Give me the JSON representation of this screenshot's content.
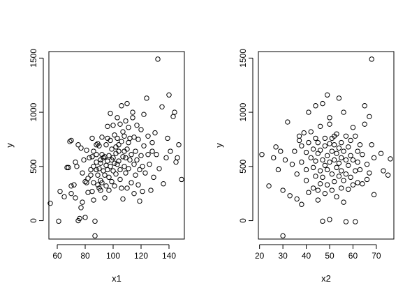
{
  "chart_data": [
    {
      "type": "scatter",
      "xlabel": "x1",
      "ylabel": "y",
      "xlim": [
        54,
        151
      ],
      "ylim": [
        -170,
        1560
      ],
      "xticks": [
        60,
        80,
        100,
        120,
        140
      ],
      "yticks": [
        0,
        500,
        1000,
        1500
      ],
      "grid": false,
      "legend": "none",
      "points": [
        [
          55,
          160
        ],
        [
          61,
          -5
        ],
        [
          62,
          270
        ],
        [
          65,
          220
        ],
        [
          67,
          490
        ],
        [
          68,
          490
        ],
        [
          69,
          730
        ],
        [
          70,
          740
        ],
        [
          70,
          250
        ],
        [
          70,
          320
        ],
        [
          72,
          330
        ],
        [
          73,
          210
        ],
        [
          73,
          540
        ],
        [
          74,
          500
        ],
        [
          75,
          700
        ],
        [
          75,
          0
        ],
        [
          76,
          20
        ],
        [
          77,
          670
        ],
        [
          77,
          120
        ],
        [
          78,
          170
        ],
        [
          78,
          440
        ],
        [
          79,
          560
        ],
        [
          80,
          360
        ],
        [
          80,
          30
        ],
        [
          81,
          650
        ],
        [
          81,
          350
        ],
        [
          82,
          390
        ],
        [
          82,
          260
        ],
        [
          83,
          580
        ],
        [
          84,
          420
        ],
        [
          84,
          470
        ],
        [
          85,
          760
        ],
        [
          85,
          270
        ],
        [
          85,
          590
        ],
        [
          86,
          500
        ],
        [
          86,
          640
        ],
        [
          86,
          350
        ],
        [
          86,
          190
        ],
        [
          87,
          -140
        ],
        [
          87,
          -5
        ],
        [
          88,
          700
        ],
        [
          88,
          540
        ],
        [
          88,
          610
        ],
        [
          88,
          470
        ],
        [
          89,
          710
        ],
        [
          89,
          420
        ],
        [
          89,
          330
        ],
        [
          90,
          300
        ],
        [
          90,
          690
        ],
        [
          90,
          480
        ],
        [
          91,
          560
        ],
        [
          91,
          370
        ],
        [
          91,
          530
        ],
        [
          91,
          280
        ],
        [
          92,
          770
        ],
        [
          92,
          610
        ],
        [
          92,
          350
        ],
        [
          93,
          580
        ],
        [
          93,
          460
        ],
        [
          94,
          590
        ],
        [
          94,
          420
        ],
        [
          94,
          210
        ],
        [
          95,
          700
        ],
        [
          95,
          510
        ],
        [
          95,
          320
        ],
        [
          96,
          760
        ],
        [
          96,
          550
        ],
        [
          96,
          470
        ],
        [
          96,
          870
        ],
        [
          97,
          600
        ],
        [
          97,
          400
        ],
        [
          97,
          280
        ],
        [
          98,
          990
        ],
        [
          98,
          740
        ],
        [
          98,
          500
        ],
        [
          99,
          660
        ],
        [
          99,
          360
        ],
        [
          99,
          560
        ],
        [
          100,
          460
        ],
        [
          100,
          880
        ],
        [
          100,
          580
        ],
        [
          101,
          530
        ],
        [
          101,
          790
        ],
        [
          101,
          320
        ],
        [
          102,
          620
        ],
        [
          102,
          430
        ],
        [
          102,
          680
        ],
        [
          103,
          760
        ],
        [
          103,
          950
        ],
        [
          103,
          520
        ],
        [
          104,
          700
        ],
        [
          104,
          550
        ],
        [
          104,
          640
        ],
        [
          105,
          380
        ],
        [
          105,
          890
        ],
        [
          105,
          470
        ],
        [
          106,
          1060
        ],
        [
          106,
          730
        ],
        [
          106,
          300
        ],
        [
          107,
          590
        ],
        [
          107,
          820
        ],
        [
          107,
          200
        ],
        [
          108,
          780
        ],
        [
          108,
          500
        ],
        [
          108,
          640
        ],
        [
          109,
          440
        ],
        [
          109,
          920
        ],
        [
          109,
          580
        ],
        [
          110,
          660
        ],
        [
          110,
          1080
        ],
        [
          110,
          300
        ],
        [
          111,
          720
        ],
        [
          111,
          480
        ],
        [
          111,
          860
        ],
        [
          112,
          560
        ],
        [
          112,
          760
        ],
        [
          113,
          610
        ],
        [
          113,
          350
        ],
        [
          114,
          950
        ],
        [
          114,
          1000
        ],
        [
          115,
          520
        ],
        [
          115,
          770
        ],
        [
          115,
          250
        ],
        [
          116,
          640
        ],
        [
          116,
          420
        ],
        [
          117,
          880
        ],
        [
          117,
          560
        ],
        [
          118,
          750
        ],
        [
          118,
          330
        ],
        [
          119,
          180
        ],
        [
          119,
          470
        ],
        [
          120,
          600
        ],
        [
          120,
          840
        ],
        [
          121,
          500
        ],
        [
          121,
          270
        ],
        [
          122,
          690
        ],
        [
          122,
          980
        ],
        [
          123,
          440
        ],
        [
          124,
          1130
        ],
        [
          125,
          610
        ],
        [
          125,
          780
        ],
        [
          126,
          520
        ],
        [
          127,
          280
        ],
        [
          128,
          720
        ],
        [
          128,
          640
        ],
        [
          129,
          400
        ],
        [
          130,
          810
        ],
        [
          131,
          610
        ],
        [
          132,
          1490
        ],
        [
          133,
          480
        ],
        [
          135,
          1050
        ],
        [
          136,
          340
        ],
        [
          138,
          580
        ],
        [
          139,
          760
        ],
        [
          140,
          1160
        ],
        [
          141,
          640
        ],
        [
          143,
          960
        ],
        [
          144,
          1000
        ],
        [
          145,
          540
        ],
        [
          146,
          580
        ],
        [
          147,
          700
        ],
        [
          149,
          380
        ]
      ]
    },
    {
      "type": "scatter",
      "xlabel": "x2",
      "ylabel": "y",
      "xlim": [
        19.5,
        77.5
      ],
      "ylim": [
        -170,
        1560
      ],
      "xticks": [
        20,
        30,
        40,
        50,
        60,
        70
      ],
      "yticks": [
        0,
        500,
        1000,
        1500
      ],
      "grid": false,
      "legend": "none",
      "points": [
        [
          21,
          610
        ],
        [
          24,
          320
        ],
        [
          26,
          580
        ],
        [
          27,
          680
        ],
        [
          28,
          470
        ],
        [
          29,
          640
        ],
        [
          30,
          -140
        ],
        [
          30,
          280
        ],
        [
          31,
          560
        ],
        [
          32,
          910
        ],
        [
          33,
          230
        ],
        [
          34,
          520
        ],
        [
          35,
          640
        ],
        [
          36,
          430
        ],
        [
          36,
          200
        ],
        [
          37,
          740
        ],
        [
          37,
          780
        ],
        [
          38,
          540
        ],
        [
          38,
          690
        ],
        [
          38,
          150
        ],
        [
          39,
          810
        ],
        [
          40,
          470
        ],
        [
          40,
          630
        ],
        [
          40,
          370
        ],
        [
          41,
          1000
        ],
        [
          41,
          260
        ],
        [
          41,
          720
        ],
        [
          42,
          580
        ],
        [
          42,
          820
        ],
        [
          43,
          490
        ],
        [
          43,
          660
        ],
        [
          43,
          300
        ],
        [
          44,
          760
        ],
        [
          44,
          550
        ],
        [
          44,
          410
        ],
        [
          44,
          1060
        ],
        [
          45,
          620
        ],
        [
          45,
          720
        ],
        [
          45,
          280
        ],
        [
          45,
          190
        ],
        [
          46,
          460
        ],
        [
          46,
          650
        ],
        [
          46,
          870
        ],
        [
          46,
          340
        ],
        [
          47,
          560
        ],
        [
          47,
          1080
        ],
        [
          47,
          400
        ],
        [
          47,
          -5
        ],
        [
          48,
          690
        ],
        [
          48,
          510
        ],
        [
          48,
          760
        ],
        [
          48,
          250
        ],
        [
          49,
          1160
        ],
        [
          49,
          470
        ],
        [
          49,
          600
        ],
        [
          49,
          330
        ],
        [
          50,
          890
        ],
        [
          50,
          710
        ],
        [
          50,
          540
        ],
        [
          50,
          950
        ],
        [
          50,
          10
        ],
        [
          51,
          640
        ],
        [
          51,
          430
        ],
        [
          51,
          760
        ],
        [
          51,
          280
        ],
        [
          52,
          780
        ],
        [
          52,
          560
        ],
        [
          52,
          360
        ],
        [
          52,
          700
        ],
        [
          53,
          800
        ],
        [
          53,
          490
        ],
        [
          53,
          620
        ],
        [
          53,
          220
        ],
        [
          54,
          1130
        ],
        [
          54,
          670
        ],
        [
          54,
          410
        ],
        [
          54,
          530
        ],
        [
          55,
          720
        ],
        [
          55,
          580
        ],
        [
          55,
          300
        ],
        [
          55,
          460
        ],
        [
          56,
          1000
        ],
        [
          56,
          640
        ],
        [
          56,
          370
        ],
        [
          56,
          170
        ],
        [
          57,
          560
        ],
        [
          57,
          780
        ],
        [
          57,
          430
        ],
        [
          57,
          -10
        ],
        [
          58,
          680
        ],
        [
          58,
          510
        ],
        [
          58,
          290
        ],
        [
          59,
          740
        ],
        [
          59,
          600
        ],
        [
          59,
          400
        ],
        [
          60,
          560
        ],
        [
          60,
          860
        ],
        [
          60,
          330
        ],
        [
          61,
          780
        ],
        [
          61,
          460
        ],
        [
          61,
          -10
        ],
        [
          62,
          640
        ],
        [
          62,
          540
        ],
        [
          62,
          350
        ],
        [
          63,
          700
        ],
        [
          63,
          470
        ],
        [
          64,
          610
        ],
        [
          64,
          340
        ],
        [
          65,
          890
        ],
        [
          65,
          1060
        ],
        [
          66,
          520
        ],
        [
          66,
          380
        ],
        [
          67,
          960
        ],
        [
          67,
          440
        ],
        [
          68,
          1490
        ],
        [
          68,
          700
        ],
        [
          69,
          580
        ],
        [
          69,
          240
        ],
        [
          72,
          620
        ],
        [
          73,
          460
        ],
        [
          75,
          420
        ],
        [
          76,
          570
        ]
      ]
    }
  ]
}
